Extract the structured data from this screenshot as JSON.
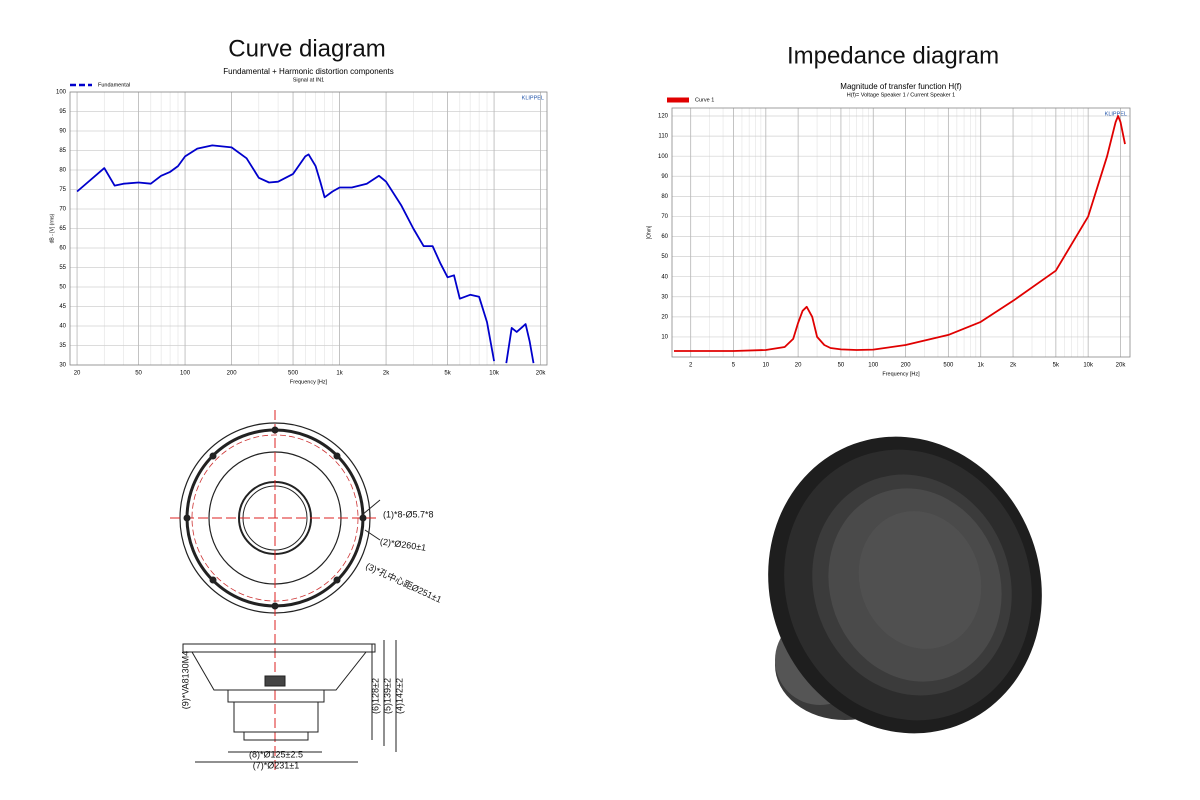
{
  "headings": [
    "Curve diagram",
    "Impedance diagram"
  ],
  "chart_data": [
    {
      "type": "line",
      "title": "Fundamental + Harmonic distortion components",
      "subtitle": "Signal at IN1",
      "brand": "KLIPPEL",
      "xlabel": "Frequency [Hz]",
      "ylabel": "dB - [V] (rms)",
      "xscale": "log",
      "grid": true,
      "legend": "top-left",
      "legend_style": "dashed",
      "x": [
        20,
        30,
        35,
        40,
        50,
        60,
        70,
        80,
        90,
        100,
        120,
        150,
        200,
        250,
        300,
        350,
        400,
        500,
        600,
        630,
        700,
        750,
        800,
        900,
        1000,
        1200,
        1500,
        1800,
        2000,
        2500,
        3000,
        3500,
        4000,
        4500,
        5000,
        5500,
        6000,
        7000,
        8000,
        9000,
        10000,
        11000,
        12000,
        13000,
        14000,
        15000,
        16000,
        17000,
        18000
      ],
      "series": [
        {
          "name": "Fundamental",
          "color": "#0000cc",
          "values": [
            74.5,
            80.5,
            76,
            76.5,
            76.8,
            76.5,
            78.5,
            79.5,
            81,
            83.5,
            85.5,
            86.3,
            85.8,
            83,
            78,
            76.8,
            77,
            79,
            83.5,
            84,
            81,
            77,
            73,
            74.5,
            75.5,
            75.5,
            76.5,
            78.5,
            77,
            71,
            65,
            60.5,
            60.5,
            56,
            52.5,
            53,
            47,
            48,
            47.5,
            41,
            31,
            null,
            30.5,
            39.5,
            38.5,
            39.5,
            40.5,
            36,
            30.5
          ]
        }
      ],
      "xlim": [
        18,
        22000
      ],
      "ylim": [
        30,
        100
      ],
      "xticks": [
        20,
        50,
        100,
        200,
        500,
        {
          "value": 1000,
          "label": "1k"
        },
        {
          "value": 2000,
          "label": "2k"
        },
        {
          "value": 5000,
          "label": "5k"
        },
        {
          "value": 10000,
          "label": "10k"
        },
        {
          "value": 20000,
          "label": "20k"
        }
      ],
      "yticks": [
        30,
        35,
        40,
        45,
        50,
        55,
        60,
        65,
        70,
        75,
        80,
        85,
        90,
        95,
        100
      ]
    },
    {
      "type": "line",
      "title": "Magnitude of transfer function H(f)",
      "subtitle": "H(f)= Voltage Speaker 1 / Current Speaker 1",
      "brand": "KLIPPEL",
      "xlabel": "Frequency [Hz]",
      "ylabel": "[Ohm]",
      "xscale": "log",
      "grid": true,
      "legend": "top-left",
      "legend_style": "block",
      "x": [
        1.4,
        3,
        5,
        10,
        15,
        18,
        20,
        22,
        24,
        27,
        30,
        35,
        40,
        50,
        70,
        100,
        200,
        500,
        1000,
        2000,
        5000,
        10000,
        15000,
        18000,
        19000,
        20000,
        22000
      ],
      "series": [
        {
          "name": "Curve 1",
          "color": "#e00000",
          "values": [
            3,
            3,
            3,
            3.5,
            5,
            9,
            17,
            23,
            25,
            20,
            10,
            6,
            4.5,
            3.8,
            3.5,
            3.7,
            6,
            11,
            17.5,
            28,
            43,
            70,
            100,
            117,
            120,
            117,
            106
          ]
        }
      ],
      "xlim": [
        1.34,
        24500
      ],
      "ylim": [
        0,
        124
      ],
      "xticks": [
        2,
        5,
        10,
        20,
        50,
        100,
        200,
        500,
        {
          "value": 1000,
          "label": "1k"
        },
        {
          "value": 2000,
          "label": "2k"
        },
        {
          "value": 5000,
          "label": "5k"
        },
        {
          "value": 10000,
          "label": "10k"
        },
        {
          "value": 20000,
          "label": "20k"
        }
      ],
      "yticks": [
        10,
        20,
        30,
        40,
        50,
        60,
        70,
        80,
        90,
        100,
        110,
        120
      ]
    }
  ],
  "drawing": {
    "labels": [
      "(1)*8-Ø5.7*8",
      "(2)*Ø260±1",
      "(3)*孔中心距Ø251±1",
      "(4)142±2",
      "(5)139±2",
      "(6)128±2",
      "(7)*Ø231±1",
      "(8)*Ø125±2.5",
      "(9)*VA8130M4"
    ]
  }
}
